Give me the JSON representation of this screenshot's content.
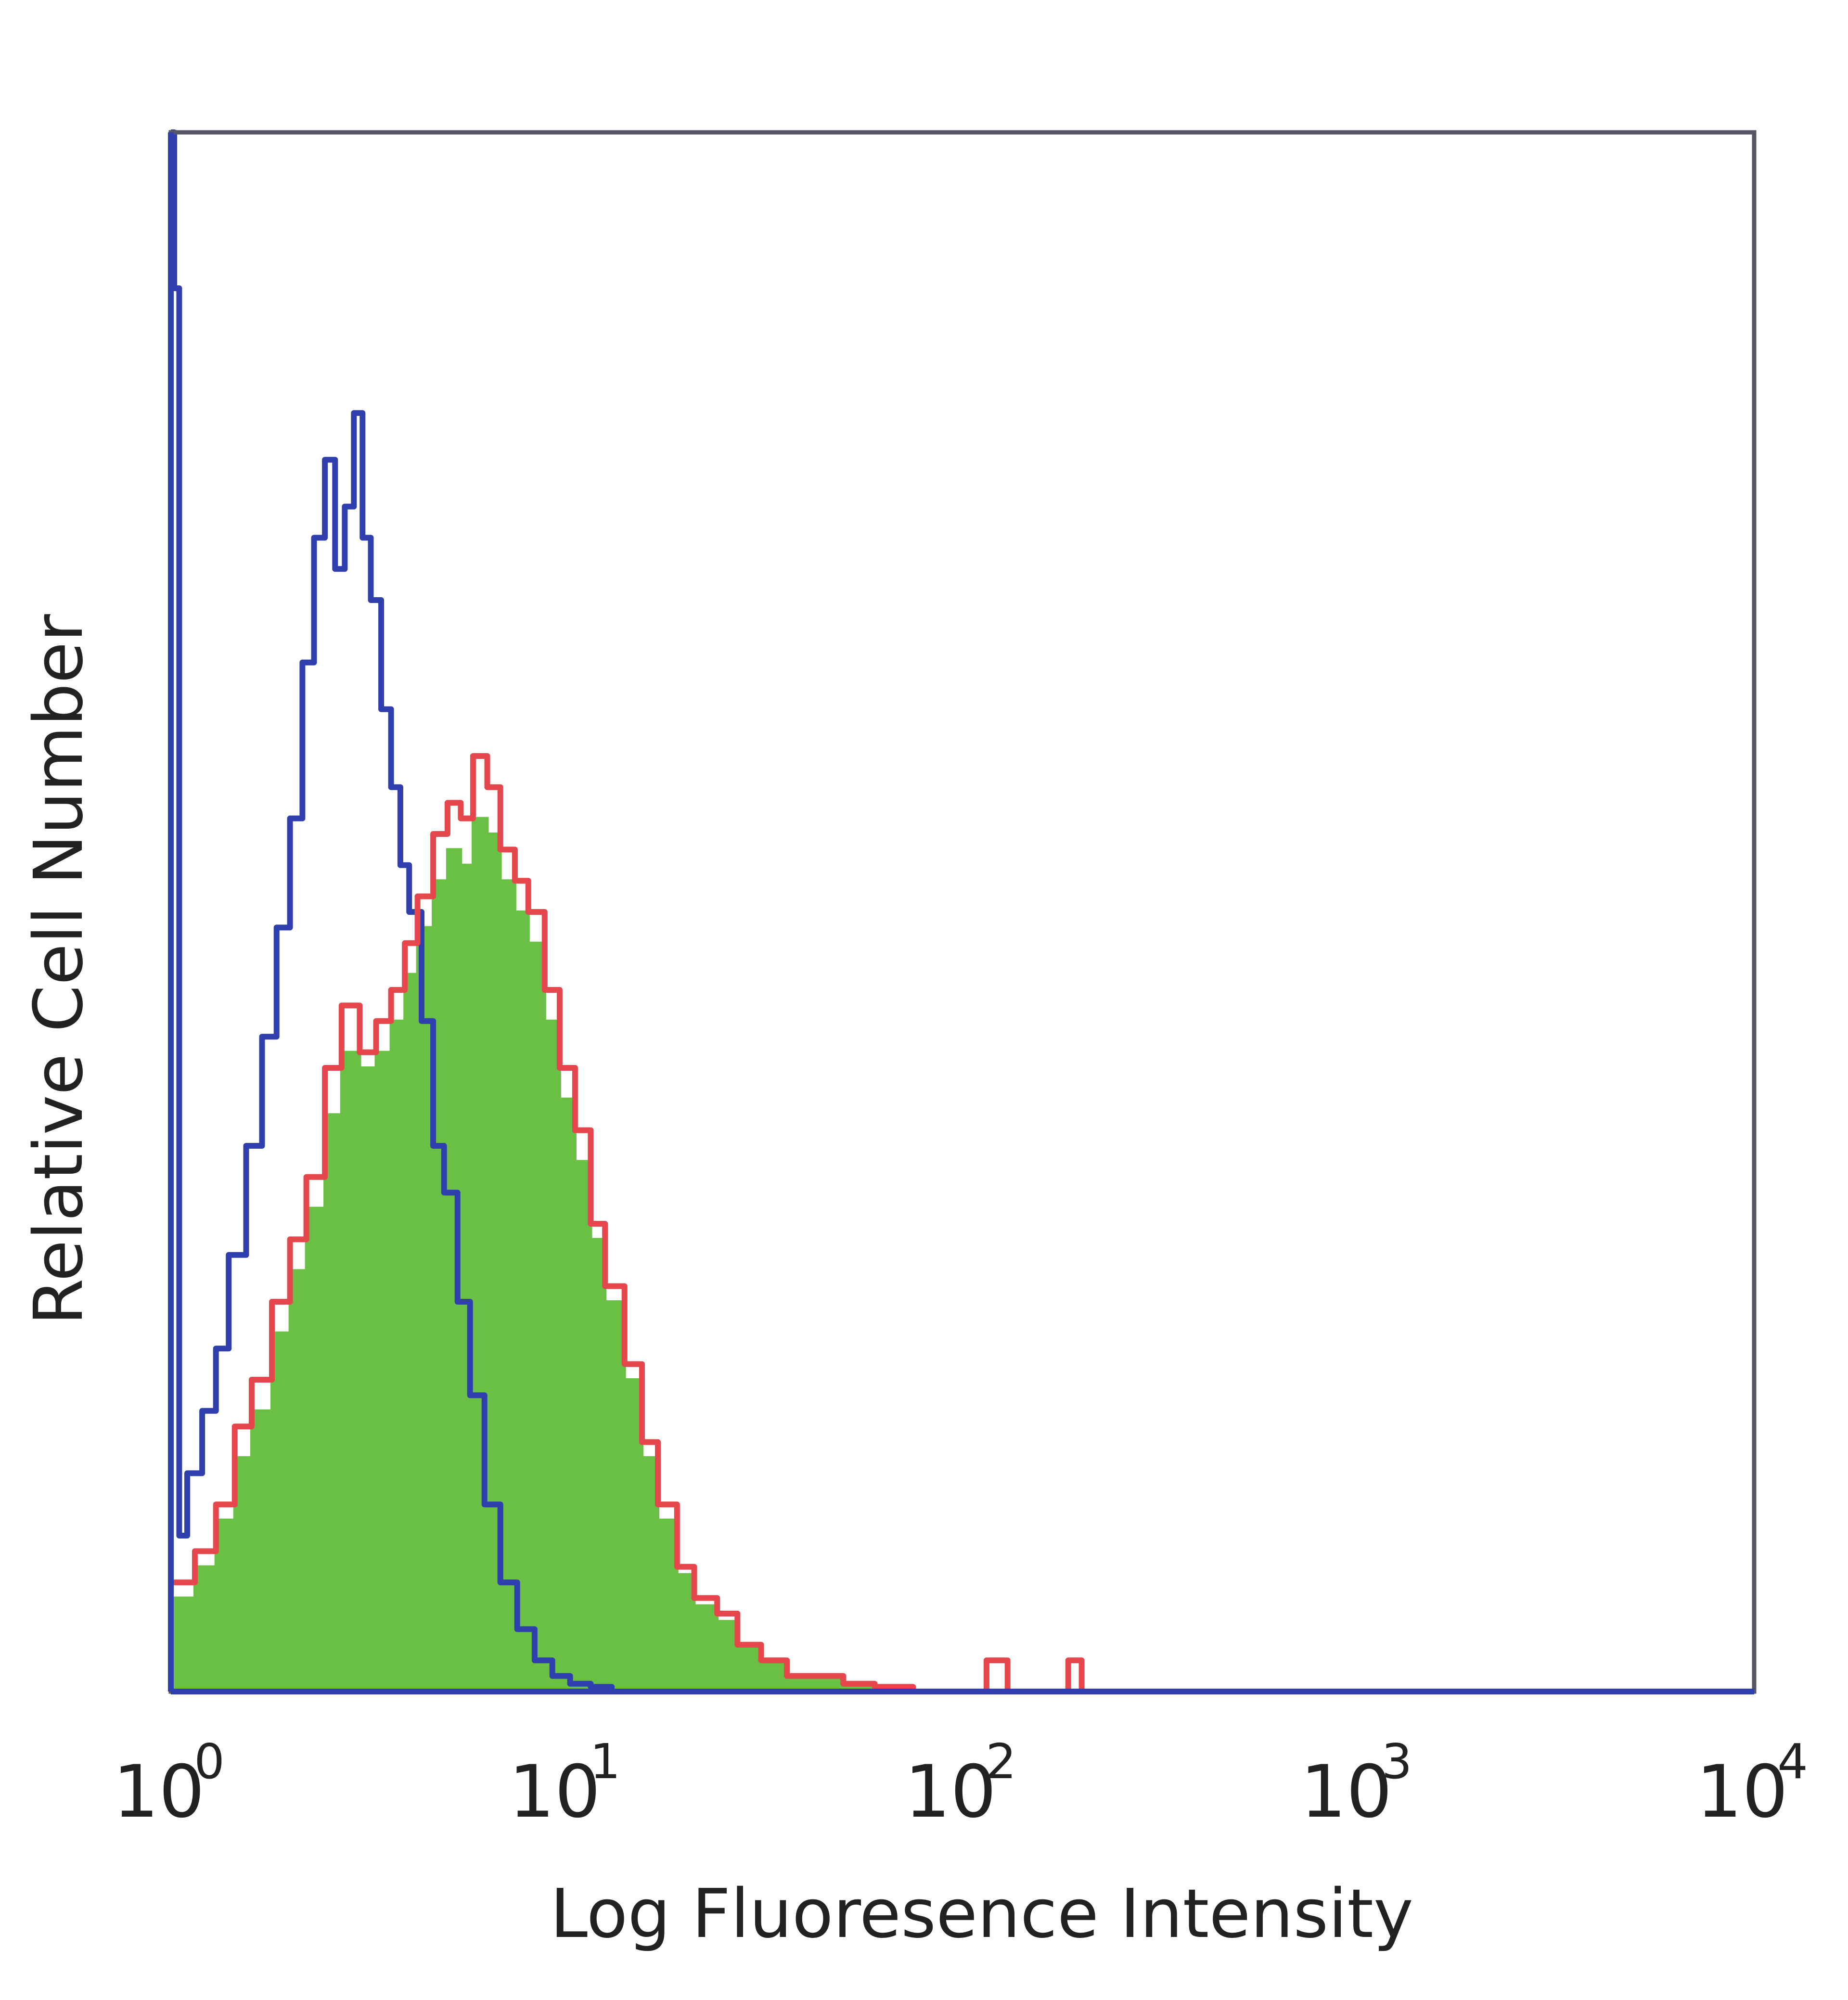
{
  "chart_data": {
    "type": "area",
    "xlabel": "Log Fluoresence Intensity",
    "ylabel": "Relative Cell Number",
    "x_scale": "log",
    "xlim": [
      1,
      10000
    ],
    "ylim": [
      0,
      1
    ],
    "x_ticks": [
      {
        "base": "10",
        "exp": "0"
      },
      {
        "base": "10",
        "exp": "1"
      },
      {
        "base": "10",
        "exp": "2"
      },
      {
        "base": "10",
        "exp": "3"
      },
      {
        "base": "10",
        "exp": "4"
      }
    ],
    "grid": false,
    "legend": "none",
    "series": [
      {
        "color": "#2f3fae",
        "style": "outline",
        "points": [
          [
            1.0,
            1.0
          ],
          [
            1.02,
            0.9
          ],
          [
            1.05,
            0.1
          ],
          [
            1.1,
            0.14
          ],
          [
            1.2,
            0.18
          ],
          [
            1.3,
            0.22
          ],
          [
            1.4,
            0.28
          ],
          [
            1.55,
            0.35
          ],
          [
            1.7,
            0.42
          ],
          [
            1.85,
            0.49
          ],
          [
            2.0,
            0.56
          ],
          [
            2.15,
            0.66
          ],
          [
            2.3,
            0.74
          ],
          [
            2.45,
            0.79
          ],
          [
            2.6,
            0.72
          ],
          [
            2.75,
            0.76
          ],
          [
            2.9,
            0.82
          ],
          [
            3.05,
            0.74
          ],
          [
            3.2,
            0.7
          ],
          [
            3.4,
            0.63
          ],
          [
            3.6,
            0.58
          ],
          [
            3.8,
            0.53
          ],
          [
            4.0,
            0.5
          ],
          [
            4.3,
            0.43
          ],
          [
            4.6,
            0.35
          ],
          [
            4.9,
            0.32
          ],
          [
            5.3,
            0.25
          ],
          [
            5.7,
            0.19
          ],
          [
            6.2,
            0.12
          ],
          [
            6.8,
            0.07
          ],
          [
            7.5,
            0.04
          ],
          [
            8.3,
            0.02
          ],
          [
            9.2,
            0.01
          ],
          [
            10.2,
            0.005
          ],
          [
            11.5,
            0.003
          ],
          [
            13,
            0
          ]
        ]
      },
      {
        "color": "#e5474d",
        "style": "outline",
        "points": [
          [
            1.0,
            0.07
          ],
          [
            1.15,
            0.09
          ],
          [
            1.3,
            0.12
          ],
          [
            1.45,
            0.17
          ],
          [
            1.6,
            0.2
          ],
          [
            1.8,
            0.25
          ],
          [
            2.0,
            0.29
          ],
          [
            2.2,
            0.33
          ],
          [
            2.45,
            0.4
          ],
          [
            2.7,
            0.44
          ],
          [
            3.0,
            0.41
          ],
          [
            3.3,
            0.43
          ],
          [
            3.6,
            0.45
          ],
          [
            3.9,
            0.48
          ],
          [
            4.2,
            0.51
          ],
          [
            4.6,
            0.55
          ],
          [
            5.0,
            0.57
          ],
          [
            5.4,
            0.56
          ],
          [
            5.8,
            0.6
          ],
          [
            6.3,
            0.58
          ],
          [
            6.8,
            0.54
          ],
          [
            7.4,
            0.52
          ],
          [
            8.0,
            0.5
          ],
          [
            8.8,
            0.45
          ],
          [
            9.6,
            0.4
          ],
          [
            10.5,
            0.36
          ],
          [
            11.5,
            0.3
          ],
          [
            12.5,
            0.26
          ],
          [
            14,
            0.21
          ],
          [
            15.5,
            0.16
          ],
          [
            17,
            0.12
          ],
          [
            19,
            0.08
          ],
          [
            21,
            0.06
          ],
          [
            24,
            0.05
          ],
          [
            27,
            0.03
          ],
          [
            31,
            0.02
          ],
          [
            36,
            0.01
          ],
          [
            42,
            0.01
          ],
          [
            50,
            0.005
          ],
          [
            60,
            0.003
          ],
          [
            75,
            0
          ],
          [
            100,
            0
          ],
          [
            115,
            0.02
          ],
          [
            130,
            0
          ],
          [
            170,
            0
          ],
          [
            185,
            0.02
          ],
          [
            200,
            0
          ]
        ]
      },
      {
        "color": "#6abf45",
        "style": "filled",
        "points": [
          [
            1.0,
            0.06
          ],
          [
            1.15,
            0.08
          ],
          [
            1.3,
            0.11
          ],
          [
            1.45,
            0.15
          ],
          [
            1.6,
            0.18
          ],
          [
            1.8,
            0.23
          ],
          [
            2.0,
            0.27
          ],
          [
            2.2,
            0.31
          ],
          [
            2.45,
            0.37
          ],
          [
            2.7,
            0.41
          ],
          [
            3.0,
            0.4
          ],
          [
            3.3,
            0.41
          ],
          [
            3.6,
            0.43
          ],
          [
            3.9,
            0.46
          ],
          [
            4.2,
            0.49
          ],
          [
            4.6,
            0.52
          ],
          [
            5.0,
            0.54
          ],
          [
            5.4,
            0.53
          ],
          [
            5.8,
            0.56
          ],
          [
            6.3,
            0.55
          ],
          [
            6.8,
            0.52
          ],
          [
            7.4,
            0.5
          ],
          [
            8.0,
            0.48
          ],
          [
            8.8,
            0.43
          ],
          [
            9.6,
            0.38
          ],
          [
            10.5,
            0.34
          ],
          [
            11.5,
            0.29
          ],
          [
            12.5,
            0.25
          ],
          [
            14,
            0.2
          ],
          [
            15.5,
            0.15
          ],
          [
            17,
            0.11
          ],
          [
            19,
            0.075
          ],
          [
            21,
            0.055
          ],
          [
            24,
            0.045
          ],
          [
            27,
            0.028
          ],
          [
            31,
            0.018
          ],
          [
            36,
            0.01
          ],
          [
            42,
            0.008
          ],
          [
            50,
            0.004
          ],
          [
            60,
            0.002
          ],
          [
            75,
            0
          ]
        ]
      }
    ]
  }
}
